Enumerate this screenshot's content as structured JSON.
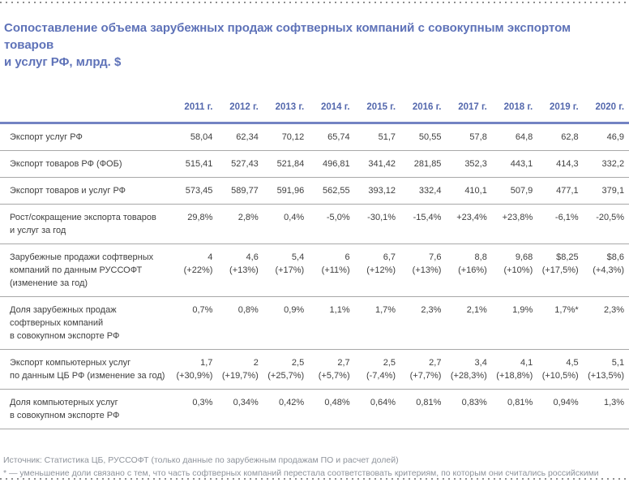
{
  "title": "Сопоставление объема зарубежных продаж софтверных компаний с совокупным экспортом товаров\nи услуг РФ, млрд. $",
  "table": {
    "year_headers": [
      "2011 г.",
      "2012 г.",
      "2013 г.",
      "2014 г.",
      "2015 г.",
      "2016 г.",
      "2017 г.",
      "2018 г.",
      "2019 г.",
      "2020 г."
    ],
    "rows": [
      {
        "label": "Экспорт услуг РФ",
        "values": [
          "58,04",
          "62,34",
          "70,12",
          "65,74",
          "51,7",
          "50,55",
          "57,8",
          "64,8",
          "62,8",
          "46,9"
        ]
      },
      {
        "label": "Экспорт товаров РФ (ФОБ)",
        "values": [
          "515,41",
          "527,43",
          "521,84",
          "496,81",
          "341,42",
          "281,85",
          "352,3",
          "443,1",
          "414,3",
          "332,2"
        ]
      },
      {
        "label": "Экспорт товаров и услуг РФ",
        "values": [
          "573,45",
          "589,77",
          "591,96",
          "562,55",
          "393,12",
          "332,4",
          "410,1",
          "507,9",
          "477,1",
          "379,1"
        ]
      },
      {
        "label": "Рост/сокращение экспорта товаров\nи услуг за год",
        "values": [
          "29,8%",
          "2,8%",
          "0,4%",
          "-5,0%",
          "-30,1%",
          "-15,4%",
          "+23,4%",
          "+23,8%",
          "-6,1%",
          "-20,5%"
        ]
      },
      {
        "label": "Зарубежные продажи софтверных\nкомпаний по данным РУССОФТ\n(изменение за год)",
        "values": [
          "4\n(+22%)",
          "4,6\n(+13%)",
          "5,4\n(+17%)",
          "6\n(+11%)",
          "6,7\n(+12%)",
          "7,6\n(+13%)",
          "8,8\n(+16%)",
          "9,68\n(+10%)",
          "$8,25\n(+17,5%)",
          "$8,6\n(+4,3%)"
        ]
      },
      {
        "label": "Доля зарубежных продаж\nсофтверных компаний\nв совокупном экспорте РФ",
        "values": [
          "0,7%",
          "0,8%",
          "0,9%",
          "1,1%",
          "1,7%",
          "2,3%",
          "2,1%",
          "1,9%",
          "1,7%*",
          "2,3%"
        ]
      },
      {
        "label": "Экспорт компьютерных услуг\nпо данным ЦБ РФ (изменение за год)",
        "values": [
          "1,7\n(+30,9%)",
          "2\n(+19,7%)",
          "2,5\n(+25,7%)",
          "2,7\n(+5,7%)",
          "2,5\n(-7,4%)",
          "2,7\n(+7,7%)",
          "3,4\n(+28,3%)",
          "4,1\n(+18,8%)",
          "4,5\n(+10,5%)",
          "5,1\n(+13,5%)"
        ]
      },
      {
        "label": "Доля компьютерных услуг\nв совокупном экспорте РФ",
        "values": [
          "0,3%",
          "0,34%",
          "0,42%",
          "0,48%",
          "0,64%",
          "0,81%",
          "0,83%",
          "0,81%",
          "0,94%",
          "1,3%"
        ]
      }
    ]
  },
  "footnotes": {
    "source": "Источник: Статистика ЦБ, РУССОФТ (только данные по зарубежным продажам ПО и расчет долей)",
    "asterisk": "* — уменьшение доли связано с тем, что часть софтверных компаний перестала соответствовать критериям, по которым они считались российскими"
  },
  "colors": {
    "accent_blue": "#5e72b8",
    "year_blue": "#5468ad",
    "rule_blue": "#7383c3",
    "separator_gray": "#a8a8a8",
    "body_text": "#3f3f3f",
    "footnote_gray": "#8e939b",
    "dot_gray": "#8f8f8f"
  }
}
